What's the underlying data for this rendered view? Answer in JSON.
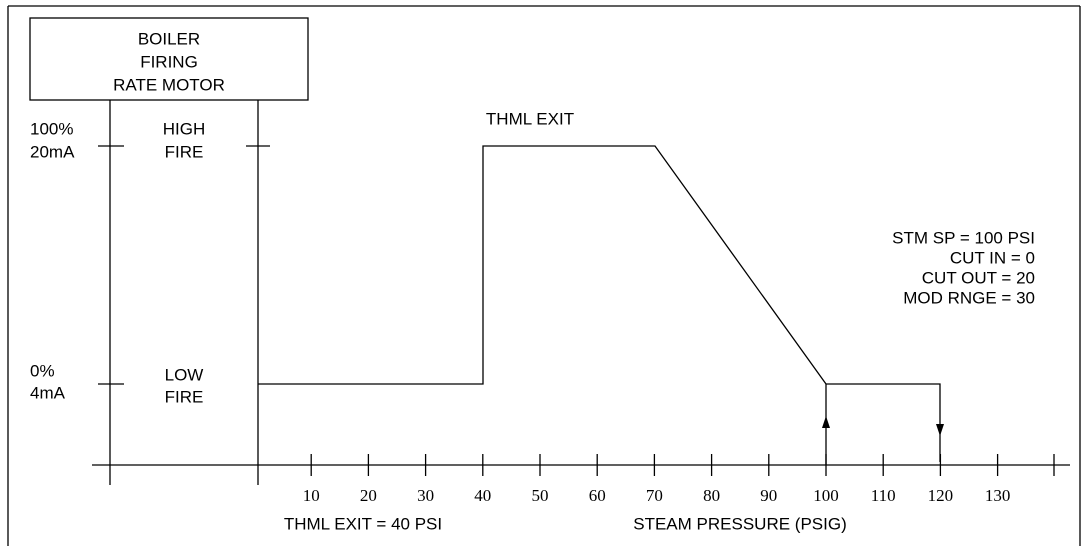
{
  "box": {
    "lines": [
      "BOILER",
      "FIRING",
      "RATE MOTOR"
    ]
  },
  "levels": {
    "high": {
      "percent": "100%",
      "current": "20mA",
      "label": [
        "HIGH",
        "FIRE"
      ]
    },
    "low": {
      "percent": "0%",
      "current": "4mA",
      "label": [
        "LOW",
        "FIRE"
      ]
    }
  },
  "curve_label": "THML EXIT",
  "settings": [
    "STM SP = 100 PSI",
    "CUT IN = 0",
    "CUT OUT = 20",
    "MOD RNGE = 30"
  ],
  "axis": {
    "ticks": [
      10,
      20,
      30,
      40,
      50,
      60,
      70,
      80,
      90,
      100,
      110,
      120,
      130
    ],
    "note": "THML EXIT = 40 PSI",
    "title": "STEAM PRESSURE (PSIG)"
  }
}
